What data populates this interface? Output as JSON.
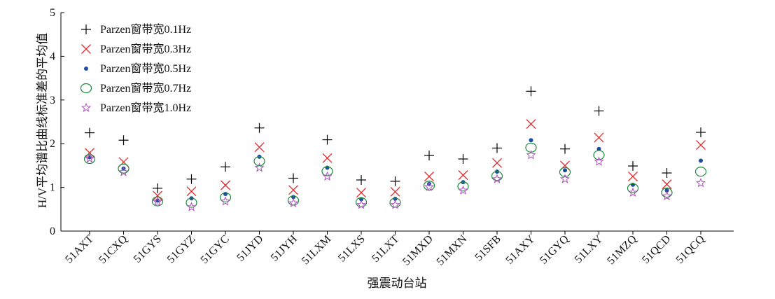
{
  "chart_data": {
    "type": "scatter",
    "title": "",
    "xlabel": "强震动台站",
    "ylabel": "H/V平均谱比曲线标准差的平均值",
    "ylim": [
      0,
      5
    ],
    "yticks": [
      0,
      1,
      2,
      3,
      4,
      5
    ],
    "grid": false,
    "legend_position": "top-left",
    "categories": [
      "51AXT",
      "51CXQ",
      "51GYS",
      "51GYZ",
      "51GYC",
      "51JYD",
      "51JYH",
      "51LXM",
      "51LXS",
      "51LXT",
      "51MXD",
      "51MXN",
      "51SFB",
      "51AXY",
      "51GYQ",
      "51LXY",
      "51MZQ",
      "51QCD",
      "51QCQ"
    ],
    "series": [
      {
        "name": "Parzen窗带宽0.1Hz",
        "marker": "plus",
        "color": "#000000",
        "values": [
          2.25,
          2.08,
          0.98,
          1.19,
          1.47,
          2.36,
          1.21,
          2.09,
          1.17,
          1.14,
          1.73,
          1.65,
          1.9,
          3.2,
          1.88,
          2.75,
          1.49,
          1.33,
          2.26
        ]
      },
      {
        "name": "Parzen窗带宽0.3Hz",
        "marker": "x",
        "color": "#e8262a",
        "values": [
          1.79,
          1.58,
          0.81,
          0.91,
          1.05,
          1.92,
          0.94,
          1.67,
          0.88,
          0.9,
          1.25,
          1.28,
          1.56,
          2.45,
          1.5,
          2.14,
          1.25,
          1.07,
          1.97
        ]
      },
      {
        "name": "Parzen窗带宽0.5Hz",
        "marker": "dot",
        "color": "#1f4e9c",
        "values": [
          1.69,
          1.43,
          0.7,
          0.75,
          0.85,
          1.7,
          0.78,
          1.45,
          0.73,
          0.74,
          1.08,
          1.12,
          1.36,
          2.08,
          1.39,
          1.88,
          1.06,
          0.93,
          1.61
        ]
      },
      {
        "name": "Parzen窗带宽0.7Hz",
        "marker": "circle",
        "color": "#1a8a3a",
        "values": [
          1.65,
          1.43,
          0.68,
          0.65,
          0.77,
          1.6,
          0.7,
          1.37,
          0.66,
          0.65,
          1.04,
          1.02,
          1.26,
          1.91,
          1.35,
          1.74,
          0.98,
          0.88,
          1.36
        ]
      },
      {
        "name": "Parzen窗带宽1.0Hz",
        "marker": "star",
        "color": "#b04fc0",
        "values": [
          1.66,
          1.35,
          0.67,
          0.55,
          0.68,
          1.45,
          0.64,
          1.25,
          0.6,
          0.6,
          1.01,
          0.93,
          1.19,
          1.74,
          1.19,
          1.59,
          0.88,
          0.8,
          1.1
        ]
      }
    ]
  }
}
